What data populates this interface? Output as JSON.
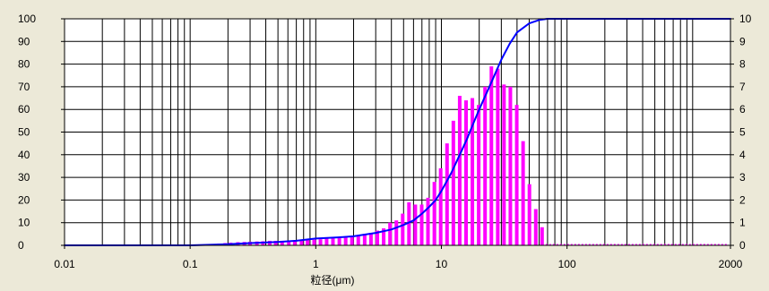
{
  "chart_data": {
    "type": "bar",
    "x_scale": "log",
    "xlim": [
      0.01,
      2000
    ],
    "ylim_left": [
      0,
      100
    ],
    "ylim_right": [
      0,
      10
    ],
    "grid": true,
    "xlabel": "粒径(μm)",
    "x_ticks": [
      {
        "value": 0.01,
        "label": "0.01"
      },
      {
        "value": 0.1,
        "label": "0.1"
      },
      {
        "value": 1,
        "label": "1"
      },
      {
        "value": 10,
        "label": "10"
      },
      {
        "value": 100,
        "label": "100"
      },
      {
        "value": 2000,
        "label": "2000"
      }
    ],
    "y_ticks_left": [
      "0",
      "10",
      "20",
      "30",
      "40",
      "50",
      "60",
      "70",
      "80",
      "90",
      "100"
    ],
    "y_ticks_right": [
      "0",
      "1",
      "2",
      "3",
      "4",
      "5",
      "6",
      "7",
      "8",
      "9",
      "10"
    ],
    "series": [
      {
        "kind": "bar",
        "axis": "right",
        "color": "#ff00ff",
        "x": [
          0.15,
          0.17,
          0.19,
          0.21,
          0.24,
          0.27,
          0.3,
          0.34,
          0.38,
          0.43,
          0.48,
          0.54,
          0.61,
          0.68,
          0.77,
          0.86,
          0.97,
          1.09,
          1.22,
          1.37,
          1.54,
          1.73,
          1.94,
          2.18,
          2.45,
          2.75,
          3.09,
          3.47,
          3.9,
          4.38,
          4.92,
          5.52,
          6.2,
          6.97,
          7.82,
          8.79,
          9.87,
          11.09,
          12.45,
          13.99,
          15.71,
          17.64,
          19.81,
          22.26,
          25.0,
          28.1,
          31.5,
          35.4,
          39.8,
          44.7,
          50.2,
          56.4,
          63.3
        ],
        "values": [
          0.05,
          0.08,
          0.1,
          0.12,
          0.14,
          0.15,
          0.16,
          0.17,
          0.18,
          0.2,
          0.2,
          0.2,
          0.2,
          0.2,
          0.22,
          0.24,
          0.25,
          0.27,
          0.3,
          0.33,
          0.35,
          0.38,
          0.4,
          0.45,
          0.5,
          0.55,
          0.65,
          0.75,
          1.0,
          1.1,
          1.4,
          1.9,
          1.8,
          1.8,
          2.1,
          2.8,
          3.4,
          4.5,
          5.5,
          6.6,
          6.4,
          6.5,
          6.2,
          7.0,
          7.9,
          7.8,
          7.1,
          7.0,
          6.2,
          4.6,
          2.7,
          1.6,
          0.8
        ]
      },
      {
        "kind": "line",
        "axis": "left",
        "color": "#0000ff",
        "x": [
          0.01,
          0.1,
          0.2,
          0.3,
          0.5,
          0.7,
          1,
          1.5,
          2,
          3,
          4,
          5,
          6,
          7,
          8,
          9,
          10,
          12,
          14,
          16,
          18,
          20,
          25,
          30,
          35,
          40,
          50,
          60,
          70,
          80,
          100,
          200,
          500,
          1000,
          2000
        ],
        "values": [
          0,
          0,
          0.5,
          1,
          1.5,
          2,
          3,
          3.5,
          4,
          5.5,
          7,
          9,
          11,
          14,
          17,
          20,
          24,
          32,
          40,
          47,
          54,
          60,
          72,
          82,
          89,
          94,
          98,
          99.5,
          100,
          100,
          100,
          100,
          100,
          100,
          100
        ]
      }
    ]
  }
}
